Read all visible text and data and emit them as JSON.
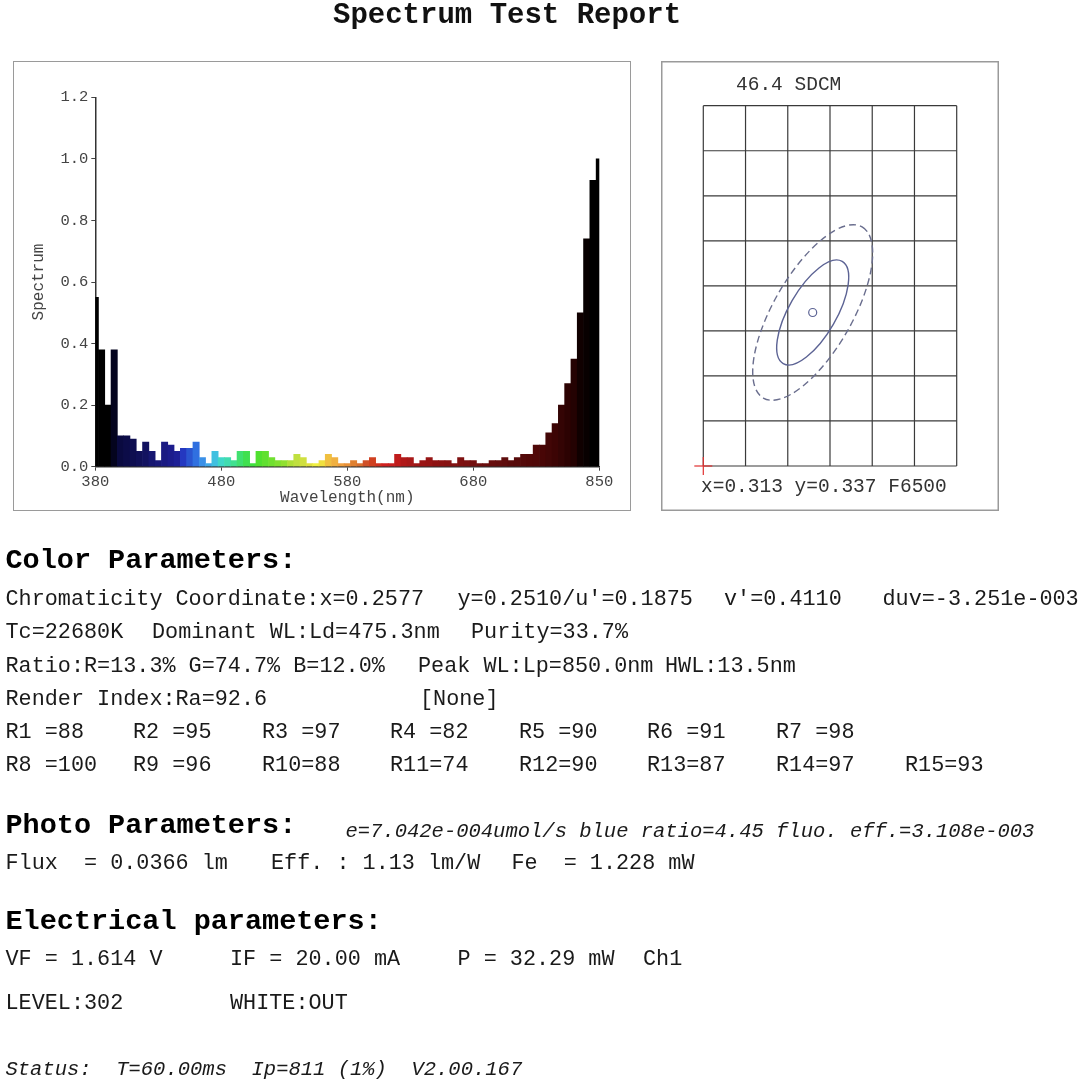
{
  "chart_data": [
    {
      "type": "bar",
      "title": "Spectrum Test Report",
      "xlabel": "Wavelength(nm)",
      "ylabel": "Spectrum",
      "categories": [
        "380",
        null,
        null,
        null,
        null,
        null,
        null,
        null,
        null,
        null,
        null,
        null,
        null,
        null,
        null,
        null,
        null,
        null,
        null,
        null,
        "480",
        null,
        null,
        null,
        null,
        null,
        null,
        null,
        null,
        null,
        null,
        null,
        null,
        null,
        null,
        null,
        null,
        null,
        null,
        null,
        "580",
        null,
        null,
        null,
        null,
        null,
        null,
        null,
        null,
        null,
        null,
        null,
        null,
        null,
        null,
        null,
        null,
        null,
        null,
        null,
        "680",
        null,
        null,
        null,
        null,
        null,
        null,
        null,
        null,
        null,
        null,
        null,
        null,
        null,
        null,
        null,
        null,
        null,
        null,
        null,
        "850"
      ],
      "values": [
        0.55,
        0.38,
        0.2,
        0.38,
        0.1,
        0.1,
        0.09,
        0.05,
        0.08,
        0.05,
        0.02,
        0.08,
        0.07,
        0.05,
        0.06,
        0.06,
        0.08,
        0.03,
        0.01,
        0.05,
        0.03,
        0.03,
        0.02,
        0.05,
        0.05,
        0.01,
        0.05,
        0.05,
        0.03,
        0.02,
        0.02,
        0.02,
        0.04,
        0.03,
        0.01,
        0.01,
        0.02,
        0.04,
        0.03,
        0.01,
        0.01,
        0.02,
        0.01,
        0.02,
        0.03,
        0.01,
        0.01,
        0.01,
        0.04,
        0.03,
        0.03,
        0.01,
        0.02,
        0.03,
        0.02,
        0.02,
        0.02,
        0.01,
        0.03,
        0.02,
        0.02,
        0.01,
        0.01,
        0.02,
        0.02,
        0.03,
        0.02,
        0.03,
        0.04,
        0.04,
        0.07,
        0.07,
        0.11,
        0.14,
        0.2,
        0.27,
        0.35,
        0.5,
        0.74,
        0.93,
        1.0
      ],
      "colors": [
        "#000000",
        "#000000",
        "#000000",
        "#04041e",
        "#0a0a40",
        "#0c0c48",
        "#0e0e50",
        "#101058",
        "#121260",
        "#161670",
        "#181878",
        "#1a1a82",
        "#1c1c8c",
        "#1e2096",
        "#2438c0",
        "#2a55d0",
        "#3070e0",
        "#3a90e8",
        "#40a8e8",
        "#40c0e0",
        "#40d8c8",
        "#40dcb0",
        "#40e090",
        "#40e070",
        "#40e050",
        "#40e040",
        "#50e030",
        "#60e030",
        "#70e030",
        "#80e030",
        "#90e030",
        "#b0e038",
        "#c0e040",
        "#d0e040",
        "#e0e040",
        "#f0f040",
        "#f0e040",
        "#f0c040",
        "#f0b040",
        "#f0a040",
        "#e89038",
        "#e08030",
        "#d87030",
        "#d05028",
        "#d04020",
        "#d03020",
        "#d02020",
        "#c82020",
        "#c01c1c",
        "#b01818",
        "#a81818",
        "#a01616",
        "#9a1414",
        "#961414",
        "#8e1212",
        "#8a1212",
        "#861212",
        "#821212",
        "#7e1010",
        "#7a1010",
        "#720e0e",
        "#6e0e0e",
        "#6a0e0e",
        "#660c0c",
        "#620c0c",
        "#5e0c0c",
        "#580a0a",
        "#560a0a",
        "#540a0a",
        "#520808",
        "#500808",
        "#480606",
        "#420606",
        "#3c0404",
        "#340404",
        "#2c0202",
        "#240202",
        "#100000",
        "#080000",
        "#000000",
        "#000000"
      ],
      "ylim": [
        0,
        1.2
      ],
      "yticks": [
        {
          "value": 0,
          "label": "0.0"
        },
        0.2,
        0.4,
        0.6,
        0.8,
        {
          "value": 1,
          "label": "1.0"
        },
        1.2
      ],
      "grid": false,
      "legend": false
    },
    {
      "type": "other",
      "title": "46.4 SDCM",
      "annotations": [
        "x=0.313 y=0.337 F6500"
      ]
    },
    {
      "type": "other",
      "title": "Color Parameters:",
      "annotations": [
        "Chromaticity Coordinate:x=0.2577",
        "y=0.2510/u'=0.1875",
        "v'=0.4110",
        "duv=-3.251e-003",
        "Tc=22680K",
        "Dominant WL:Ld=475.3nm",
        "Purity=33.7%",
        "Ratio:R=13.3% G=74.7% B=12.0%",
        "Peak WL:Lp=850.0nm",
        "HWL:13.5nm",
        "Render Index:Ra=92.6",
        "[None]",
        "R1 =88",
        "R2 =95",
        "R3 =97",
        "R4 =82",
        "R5 =90",
        "R6 =91",
        "R7 =98",
        "R8 =100",
        "R9 =96",
        "R10=88",
        "R11=74",
        "R12=90",
        "R13=87",
        "R14=97",
        "R15=93"
      ]
    },
    {
      "type": "other",
      "title": "Photo Parameters:",
      "subtitle": "e=7.042e-004umol/s blue ratio=4.45 fluo. eff.=3.108e-003",
      "annotations": [
        "Flux  = 0.0366 lm",
        "Eff. : 1.13 lm/W",
        "Fe  = 1.228 mW"
      ]
    },
    {
      "type": "other",
      "title": "Electrical parameters:",
      "annotations": [
        "VF = 1.614 V",
        "IF = 20.00 mA",
        "P = 32.29 mW",
        "Ch1",
        "LEVEL:302",
        "WHITE:OUT"
      ]
    },
    {
      "type": "other",
      "subtitle": "Status:  T=60.00ms  Ip=811 (1%)  V2.00.167"
    }
  ]
}
